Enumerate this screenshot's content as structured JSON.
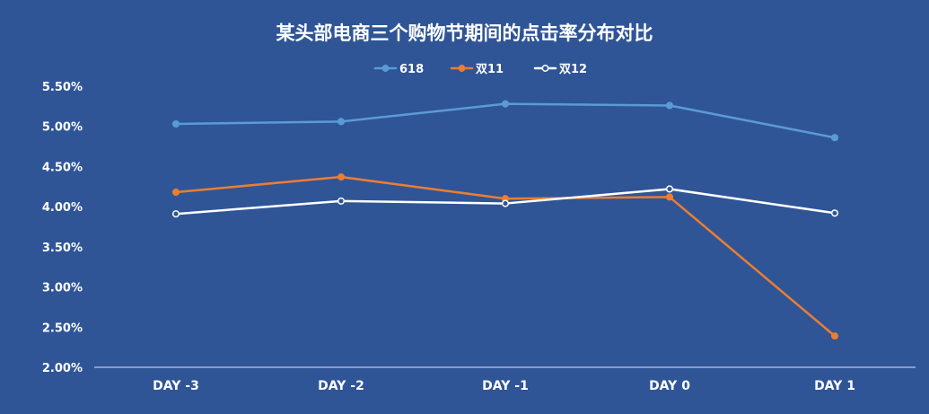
{
  "chart_data": {
    "type": "line",
    "title": "某头部电商三个购物节期间的点击率分布对比",
    "xlabel": "",
    "ylabel": "",
    "categories": [
      "DAY -3",
      "DAY -2",
      "DAY -1",
      "DAY 0",
      "DAY 1"
    ],
    "ylim": [
      0.02,
      0.055
    ],
    "yticks": [
      "2.00%",
      "2.50%",
      "3.00%",
      "3.50%",
      "4.00%",
      "4.50%",
      "5.00%",
      "5.50%"
    ],
    "grid": false,
    "legend": "top",
    "series": [
      {
        "name": "618",
        "values": [
          0.0503,
          0.0506,
          0.0528,
          0.0526,
          0.0486
        ],
        "color": "#5b9bd5",
        "marker_fill": "#5b9bd5"
      },
      {
        "name": "双11",
        "values": [
          0.0418,
          0.0437,
          0.041,
          0.0412,
          0.0239
        ],
        "color": "#ed7d31",
        "marker_fill": "#ed7d31"
      },
      {
        "name": "双12",
        "values": [
          0.0391,
          0.0407,
          0.0404,
          0.0422,
          0.0392
        ],
        "color": "#ffffff",
        "marker_fill": "#2f5597"
      }
    ]
  }
}
